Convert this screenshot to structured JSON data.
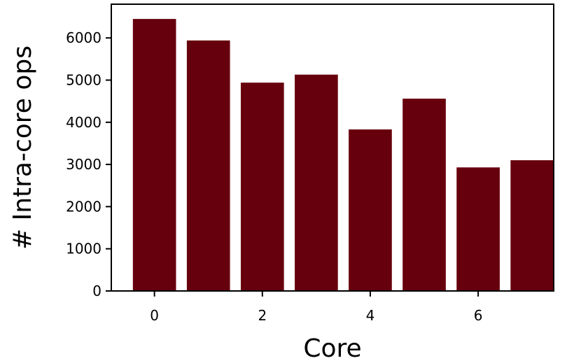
{
  "chart_data": {
    "type": "bar",
    "x": [
      0,
      1,
      2,
      3,
      4,
      5,
      6,
      7
    ],
    "values": [
      6450,
      5940,
      4940,
      5130,
      3830,
      4560,
      2930,
      3100
    ],
    "xlabel": "Core",
    "ylabel": "# Intra-core ops",
    "xlim": [
      -0.8,
      7.4
    ],
    "ylim": [
      0,
      6800
    ],
    "xticks": [
      0,
      2,
      4,
      6
    ],
    "yticks": [
      0,
      1000,
      2000,
      3000,
      4000,
      5000,
      6000
    ],
    "bar_color": "#67000d",
    "grid": false,
    "legend": "none"
  }
}
